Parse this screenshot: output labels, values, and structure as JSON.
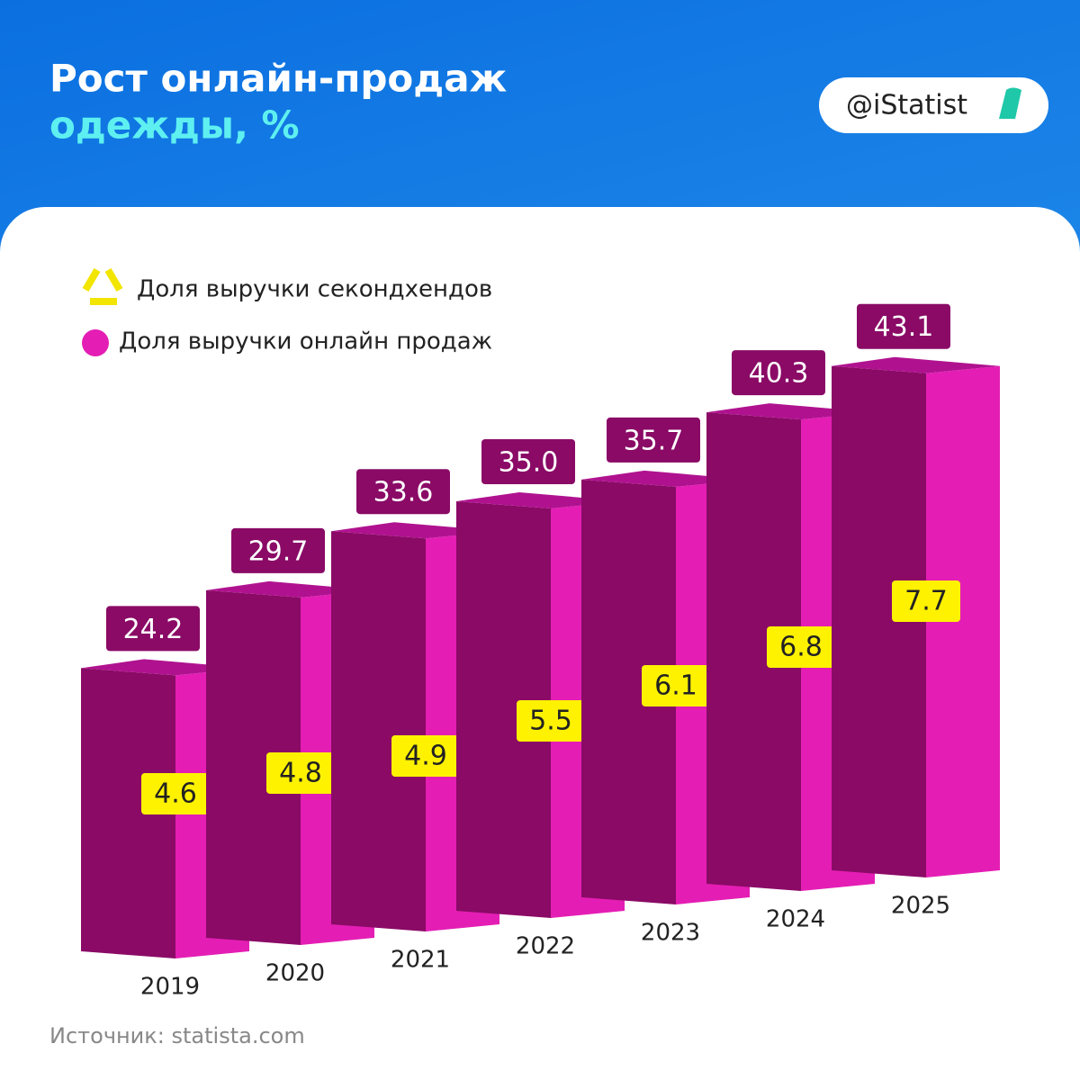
{
  "chart_data": {
    "type": "bar3d",
    "title": [
      "Рост онлайн-продаж",
      "одежды, %"
    ],
    "badge": "@iStatist",
    "categories": [
      "2019",
      "2020",
      "2021",
      "2022",
      "2023",
      "2024",
      "2025"
    ],
    "series": [
      {
        "name": "Доля выручки онлайн продаж",
        "color": "#e41eb4",
        "values": [
          24.2,
          29.7,
          33.6,
          35.0,
          35.7,
          40.3,
          43.1
        ],
        "value_labels": [
          "24.2",
          "29.7",
          "33.6",
          "35.0",
          "35.7",
          "40.3",
          "43.1"
        ]
      },
      {
        "name": "Доля выручки секондхендов",
        "color": "#fff200",
        "values": [
          4.6,
          4.8,
          4.9,
          5.5,
          6.1,
          6.8,
          7.7
        ]
      }
    ],
    "source": "Источник: statista.com"
  }
}
